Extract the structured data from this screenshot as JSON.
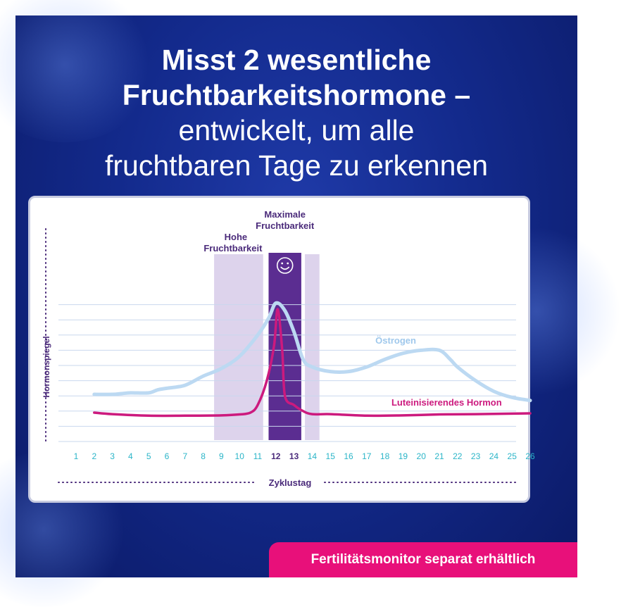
{
  "headline": {
    "line1": "Misst 2 wesentliche",
    "line2": "Fruchtbarkeitshormone –",
    "line3": "entwickelt, um alle",
    "line4": "fruchtbaren Tage zu erkennen"
  },
  "badge": {
    "text": "Fertilitätsmonitor separat erhältlich"
  },
  "colors": {
    "background": "#132a8c",
    "estrogen": "#bcd9f2",
    "lh": "#cc1a7e",
    "high_band": "#ddd3ec",
    "peak_band": "#5b2d91",
    "axis_text": "#4a2a7a",
    "tick_text": "#2bb5c8",
    "badge": "#e8107a"
  },
  "chart_data": {
    "type": "line",
    "title": "",
    "xlabel": "Zyklustag",
    "ylabel": "Hormonspiegel",
    "x": [
      1,
      2,
      3,
      4,
      5,
      6,
      7,
      8,
      9,
      10,
      11,
      12,
      13,
      14,
      15,
      16,
      17,
      18,
      19,
      20,
      21,
      22,
      23,
      24,
      25,
      26
    ],
    "highlight_ticks": [
      12,
      13
    ],
    "xlim": [
      1,
      26
    ],
    "ylim": [
      0,
      10
    ],
    "grid": true,
    "series": [
      {
        "name": "Östrogen",
        "points": [
          [
            2,
            3.1
          ],
          [
            3,
            3.1
          ],
          [
            3.5,
            3.15
          ],
          [
            4,
            3.2
          ],
          [
            5,
            3.2
          ],
          [
            5.5,
            3.4
          ],
          [
            6,
            3.5
          ],
          [
            7,
            3.7
          ],
          [
            8,
            4.3
          ],
          [
            9,
            4.8
          ],
          [
            10,
            5.6
          ],
          [
            11,
            7.0
          ],
          [
            11.6,
            8.1
          ],
          [
            12,
            9.1
          ],
          [
            12.5,
            8.6
          ],
          [
            13,
            7.2
          ],
          [
            13.5,
            5.4
          ],
          [
            14,
            4.9
          ],
          [
            15,
            4.6
          ],
          [
            16,
            4.6
          ],
          [
            17,
            4.9
          ],
          [
            18,
            5.4
          ],
          [
            19,
            5.8
          ],
          [
            20,
            6.0
          ],
          [
            21,
            6.0
          ],
          [
            21.6,
            5.4
          ],
          [
            22,
            4.9
          ],
          [
            23,
            4.0
          ],
          [
            24,
            3.3
          ],
          [
            25,
            2.9
          ],
          [
            26,
            2.7
          ]
        ]
      },
      {
        "name": "Luteinisierendes Hormon",
        "points": [
          [
            2,
            1.9
          ],
          [
            3,
            1.8
          ],
          [
            5,
            1.7
          ],
          [
            7,
            1.7
          ],
          [
            9,
            1.72
          ],
          [
            10,
            1.78
          ],
          [
            10.6,
            1.9
          ],
          [
            11,
            2.4
          ],
          [
            11.5,
            4.0
          ],
          [
            11.9,
            6.3
          ],
          [
            12.1,
            8.7
          ],
          [
            12.35,
            6.0
          ],
          [
            12.5,
            3.0
          ],
          [
            13,
            2.4
          ],
          [
            13.5,
            2.0
          ],
          [
            14,
            1.8
          ],
          [
            15,
            1.8
          ],
          [
            17,
            1.7
          ],
          [
            19,
            1.72
          ],
          [
            21,
            1.78
          ],
          [
            23,
            1.8
          ],
          [
            26,
            1.85
          ]
        ]
      }
    ],
    "bands": [
      {
        "label": "Hohe Fruchtbarkeit",
        "type": "high",
        "from": 8.6,
        "to": 11.3
      },
      {
        "label": "Maximale Fruchtbarkeit",
        "type": "peak",
        "from": 11.6,
        "to": 13.4
      },
      {
        "label": "",
        "type": "high",
        "from": 13.6,
        "to": 14.4
      }
    ],
    "band_labels": {
      "high_line1": "Hohe",
      "high_line2": "Fruchtbarkeit",
      "peak_line1": "Maximale",
      "peak_line2": "Fruchtbarkeit",
      "peak_icon": "smiley-icon"
    }
  }
}
